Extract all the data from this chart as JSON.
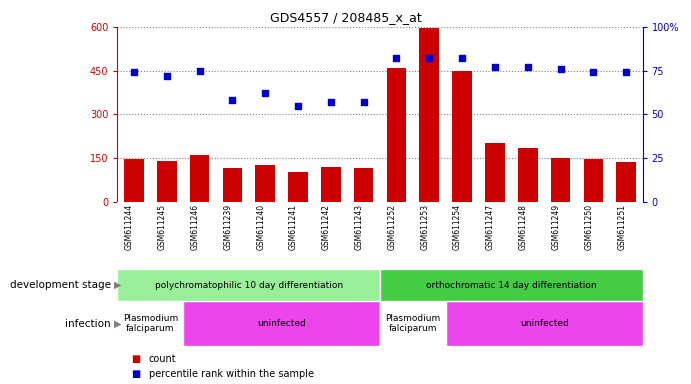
{
  "title": "GDS4557 / 208485_x_at",
  "samples": [
    "GSM611244",
    "GSM611245",
    "GSM611246",
    "GSM611239",
    "GSM611240",
    "GSM611241",
    "GSM611242",
    "GSM611243",
    "GSM611252",
    "GSM611253",
    "GSM611254",
    "GSM611247",
    "GSM611248",
    "GSM611249",
    "GSM611250",
    "GSM611251"
  ],
  "counts": [
    145,
    140,
    160,
    115,
    125,
    100,
    120,
    115,
    460,
    595,
    450,
    200,
    185,
    150,
    145,
    135
  ],
  "percentiles": [
    74,
    72,
    75,
    58,
    62,
    55,
    57,
    57,
    82,
    82,
    82,
    77,
    77,
    76,
    74,
    74
  ],
  "bar_color": "#cc0000",
  "dot_color": "#0000cc",
  "ylim_left": [
    0,
    600
  ],
  "ylim_right": [
    0,
    100
  ],
  "yticks_left": [
    0,
    150,
    300,
    450,
    600
  ],
  "yticks_right": [
    0,
    25,
    50,
    75,
    100
  ],
  "ytick_labels_left": [
    "0",
    "150",
    "300",
    "450",
    "600"
  ],
  "ytick_labels_right": [
    "0",
    "25",
    "50",
    "75",
    "100%"
  ],
  "stage_groups": [
    {
      "label": "polychromatophilic 10 day differentiation",
      "start": 0,
      "end": 7,
      "color": "#99ee99"
    },
    {
      "label": "orthochromatic 14 day differentiation",
      "start": 8,
      "end": 15,
      "color": "#44cc44"
    }
  ],
  "infection_groups": [
    {
      "label": "Plasmodium\nfalciparum",
      "start": 0,
      "end": 1,
      "color": "#ffffff"
    },
    {
      "label": "uninfected",
      "start": 2,
      "end": 7,
      "color": "#ee44ee"
    },
    {
      "label": "Plasmodium\nfalciparum",
      "start": 8,
      "end": 9,
      "color": "#ffffff"
    },
    {
      "label": "uninfected",
      "start": 10,
      "end": 15,
      "color": "#ee44ee"
    }
  ],
  "stage_label": "development stage",
  "infection_label": "infection",
  "legend_count": "count",
  "legend_percentile": "percentile rank within the sample",
  "bg_color": "#ffffff",
  "axis_color_left": "#cc0000",
  "axis_color_right": "#0000cc",
  "xtick_bg_color": "#cccccc",
  "plasmodium_color": "#ffffff",
  "uninfected_color": "#ee44ee"
}
